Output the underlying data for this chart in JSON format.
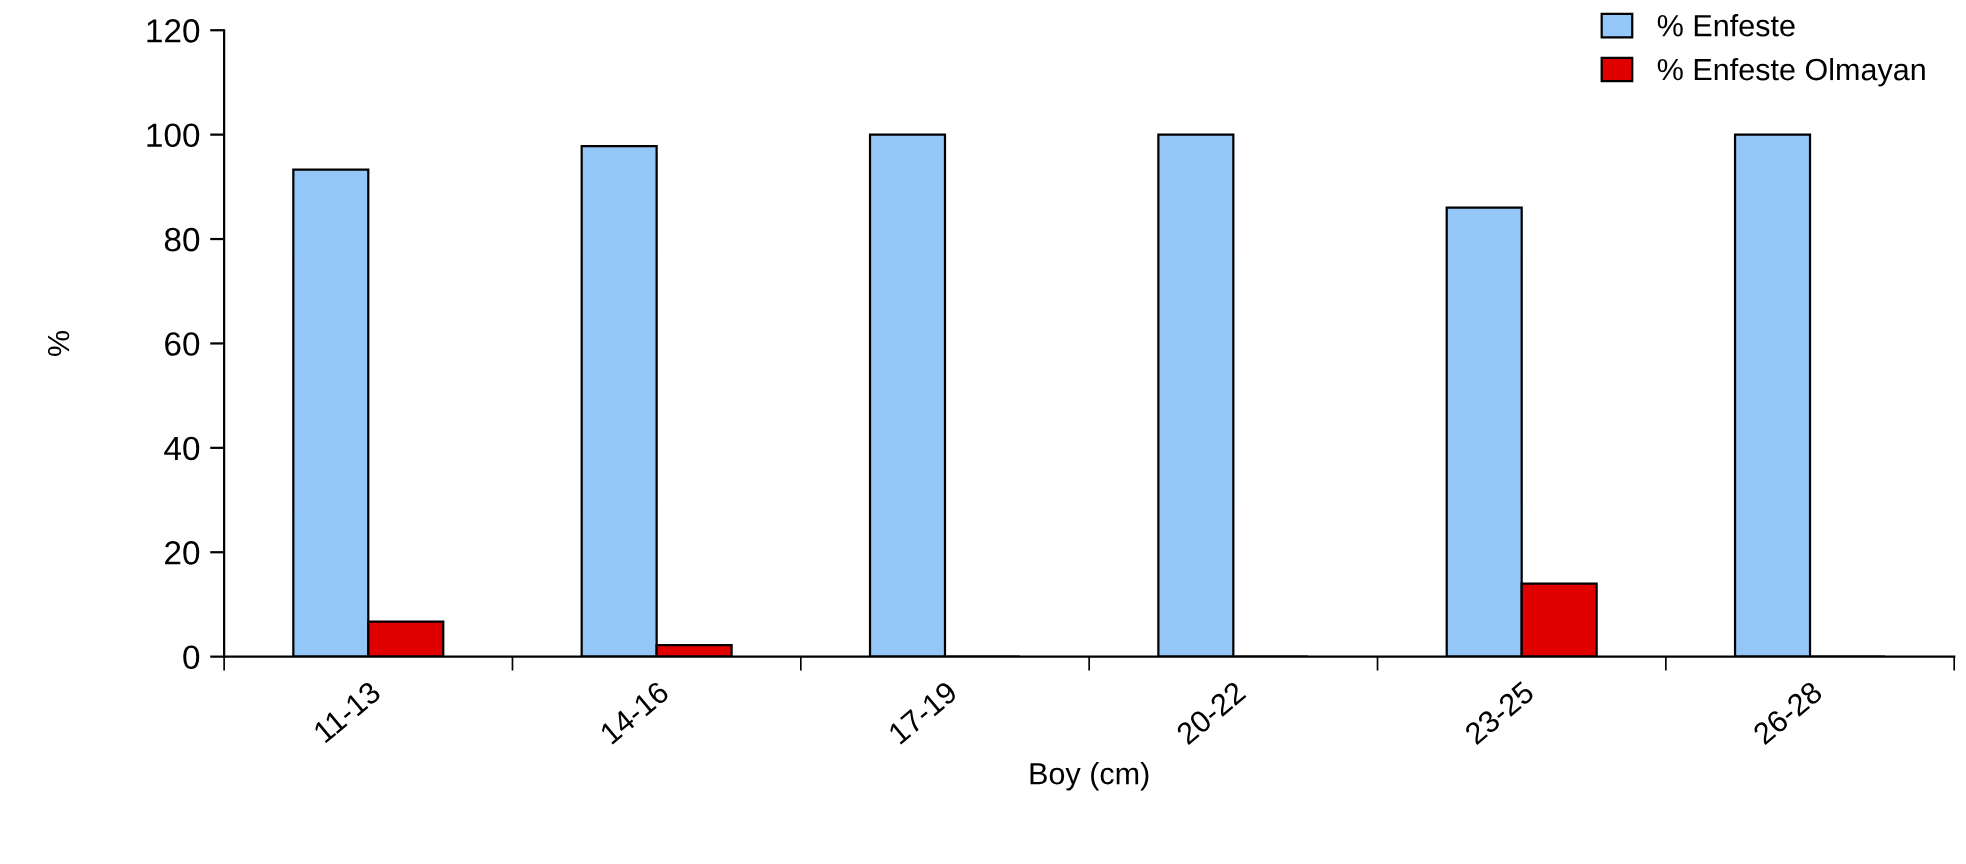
{
  "chart_data": {
    "type": "bar",
    "xlabel": "Boy (cm)",
    "ylabel": "%",
    "categories": [
      "11-13",
      "14-16",
      "17-19",
      "20-22",
      "23-25",
      "26-28"
    ],
    "series": [
      {
        "name": "% Enfeste",
        "color": "#94c6f7",
        "values": [
          93.3,
          97.8,
          100,
          100,
          86,
          100
        ]
      },
      {
        "name": "% Enfeste Olmayan",
        "color": "#e00000",
        "values": [
          6.7,
          2.2,
          0,
          0,
          14,
          0
        ]
      }
    ],
    "ylim": [
      0,
      120
    ],
    "yticks": [
      0,
      20,
      40,
      60,
      80,
      100,
      120
    ],
    "grid": false,
    "legend": "top right"
  }
}
